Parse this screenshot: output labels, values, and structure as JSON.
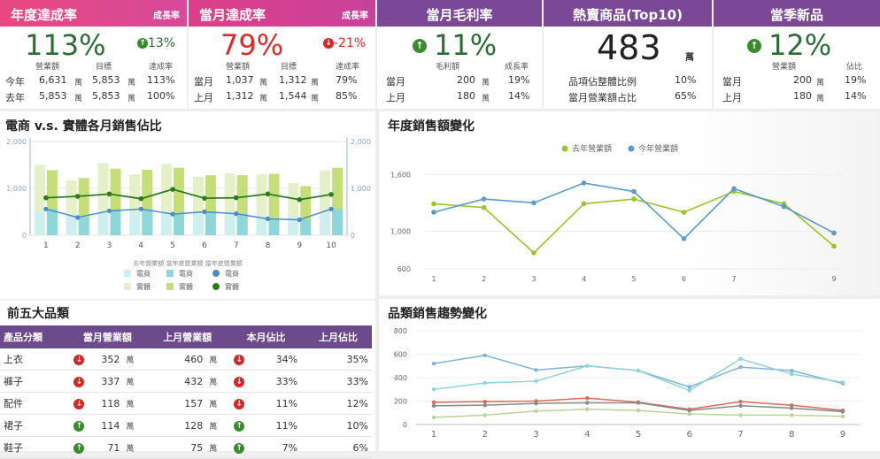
{
  "kpi1": {
    "title": "年度達成率",
    "growth_label": "成長率",
    "big": "113%",
    "growth": "13%",
    "col_a": "營業額",
    "col_b": "目標",
    "col_c": "達成率",
    "unit": "萬",
    "rows": [
      {
        "label": "今年",
        "a": "6,631",
        "b": "5,853",
        "c": "113%"
      },
      {
        "label": "去年",
        "a": "5,853",
        "b": "5,853",
        "c": "100%"
      }
    ]
  },
  "kpi2": {
    "title": "當月達成率",
    "growth_label": "成長率",
    "big": "79%",
    "growth": "-21%",
    "col_a": "營業額",
    "col_b": "目標",
    "col_c": "達成率",
    "unit": "萬",
    "rows": [
      {
        "label": "當月",
        "a": "1,037",
        "b": "1,312",
        "c": "79%"
      },
      {
        "label": "上月",
        "a": "1,312",
        "b": "1,544",
        "c": "85%"
      }
    ]
  },
  "kpi3": {
    "title": "當月毛利率",
    "big": "11%",
    "col_a": "毛利額",
    "col_b": "成長率",
    "unit": "萬",
    "rows": [
      {
        "label": "當月",
        "a": "200",
        "b": "19%"
      },
      {
        "label": "上月",
        "a": "180",
        "b": "14%"
      }
    ]
  },
  "kpi4": {
    "title": "熱賣商品(Top10)",
    "big": "483",
    "unit": "萬",
    "rows": [
      {
        "label": "品項佔整體比例",
        "v": "10%"
      },
      {
        "label": "當月營業額占比",
        "v": "65%"
      }
    ]
  },
  "kpi5": {
    "title": "當季新品",
    "big": "12%",
    "col_a": "營業額",
    "col_b": "佔比",
    "unit": "萬",
    "rows": [
      {
        "label": "當月",
        "a": "200",
        "b": "19%"
      },
      {
        "label": "上月",
        "a": "180",
        "b": "14%"
      }
    ]
  },
  "ec_title": "電商 v.s. 實體各月銷售佔比",
  "yoy_title": "年度銷售額變化",
  "top5_title": "前五大品類",
  "trend_title": "品類銷售趨勢變化",
  "colors": {
    "pink": "#e9487e",
    "purple": "#7b4897",
    "green_dark": "#2a6e34",
    "red": "#d92b2b",
    "blue": "#3a8fcc",
    "orange": "#f0a000"
  },
  "table": {
    "headers": [
      "產品分類",
      "當月營業額",
      "上月營業額",
      "本月佔比",
      "上月佔比"
    ],
    "unit": "萬",
    "rows": [
      {
        "name": "上衣",
        "cur": "352",
        "prev": "460",
        "ratio": "34%",
        "prev_ratio": "35%",
        "dir": "down"
      },
      {
        "name": "褲子",
        "cur": "337",
        "prev": "432",
        "ratio": "33%",
        "prev_ratio": "33%",
        "dir": "down"
      },
      {
        "name": "配件",
        "cur": "118",
        "prev": "157",
        "ratio": "11%",
        "prev_ratio": "12%",
        "dir": "down"
      },
      {
        "name": "裙子",
        "cur": "114",
        "prev": "128",
        "ratio": "11%",
        "prev_ratio": "10%",
        "dir": "up"
      },
      {
        "name": "鞋子",
        "cur": "71",
        "prev": "75",
        "ratio": "7%",
        "prev_ratio": "6%",
        "dir": "up"
      }
    ]
  },
  "chart_data": [
    {
      "type": "bar",
      "categories": [
        "1",
        "2",
        "3",
        "4",
        "5",
        "6",
        "7",
        "8",
        "9",
        "10"
      ],
      "ylim": [
        0,
        2000
      ],
      "yticks": [
        "0",
        "1,000",
        "2,000"
      ],
      "legend_title": "去年營業額 當年度營業額 當年度營業額",
      "series": [
        {
          "name": "電商",
          "group": "去年",
          "values": [
            500,
            450,
            520,
            500,
            480,
            500,
            490,
            430,
            410,
            500
          ]
        },
        {
          "name": "實體",
          "group": "去年",
          "values": [
            1500,
            1170,
            1540,
            1300,
            1520,
            1250,
            1320,
            1300,
            1110,
            1380
          ]
        },
        {
          "name": "電商",
          "group": "當年",
          "values": [
            560,
            380,
            520,
            560,
            450,
            500,
            460,
            350,
            330,
            560
          ]
        },
        {
          "name": "實體",
          "group": "當年",
          "values": [
            1390,
            1220,
            1420,
            1400,
            1440,
            1280,
            1280,
            1310,
            1050,
            1440
          ]
        },
        {
          "name": "電商",
          "group": "當年點",
          "values": [
            560,
            380,
            520,
            560,
            450,
            500,
            460,
            350,
            330,
            560
          ]
        },
        {
          "name": "實體",
          "group": "當年線",
          "values": [
            800,
            830,
            880,
            780,
            980,
            790,
            800,
            880,
            760,
            870
          ]
        }
      ]
    },
    {
      "type": "line",
      "categories": [
        "1",
        "2",
        "3",
        "4",
        "5",
        "6",
        "7",
        "",
        "9"
      ],
      "ylim": [
        600,
        1800
      ],
      "yticks": [
        "600",
        "1,000",
        "1,600"
      ],
      "series": [
        {
          "name": "去年營業額",
          "color": "#9ac52a",
          "values": [
            1290,
            1250,
            770,
            1290,
            1340,
            1200,
            1420,
            1290,
            840
          ]
        },
        {
          "name": "今年營業額",
          "color": "#5b9bc9",
          "values": [
            1200,
            1340,
            1300,
            1510,
            1420,
            920,
            1450,
            1260,
            980
          ]
        }
      ]
    },
    {
      "type": "line",
      "categories": [
        "1",
        "2",
        "3",
        "4",
        "5",
        "6",
        "7",
        "8",
        "9"
      ],
      "ylim": [
        0,
        800
      ],
      "yticks": [
        "0",
        "200",
        "400",
        "600",
        "800"
      ],
      "series": [
        {
          "color": "#7fb4d8",
          "values": [
            520,
            590,
            465,
            500,
            460,
            320,
            490,
            460,
            350
          ]
        },
        {
          "color": "#8fd4d6",
          "values": [
            300,
            355,
            370,
            500,
            460,
            290,
            560,
            430,
            360
          ]
        },
        {
          "color": "#d96a5c",
          "values": [
            190,
            195,
            200,
            225,
            190,
            130,
            195,
            165,
            120
          ]
        },
        {
          "color": "#888888",
          "values": [
            160,
            165,
            180,
            185,
            185,
            120,
            160,
            140,
            110
          ]
        },
        {
          "color": "#b9d39a",
          "values": [
            60,
            80,
            115,
            130,
            120,
            90,
            80,
            80,
            70
          ]
        }
      ]
    }
  ]
}
